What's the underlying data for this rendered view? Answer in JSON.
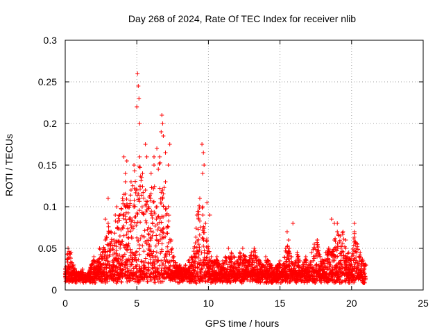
{
  "chart_data": {
    "type": "scatter",
    "title": "Day 268 of 2024, Rate Of TEC Index for receiver nlib",
    "xlabel": "GPS time / hours",
    "ylabel": "ROTI / TECUs",
    "xlim": [
      0,
      25
    ],
    "ylim": [
      0,
      0.3
    ],
    "x_ticks": [
      0,
      5,
      10,
      15,
      20,
      25
    ],
    "x_tick_labels": [
      "0",
      "5",
      "10",
      "15",
      "20",
      "25"
    ],
    "y_ticks": [
      0,
      0.05,
      0.1,
      0.15,
      0.2,
      0.25,
      0.3
    ],
    "y_tick_labels": [
      "0",
      "0.05",
      "0.1",
      "0.15",
      "0.2",
      "0.25",
      "0.3"
    ],
    "grid": true,
    "marker": "+",
    "color": "#ff0000",
    "series": [
      {
        "name": "ROTI",
        "x": [
          0.0,
          0.2,
          0.4,
          0.6,
          0.8,
          1.0,
          1.2,
          1.4,
          1.6,
          1.8,
          2.0,
          2.2,
          2.4,
          2.6,
          2.8,
          3.0,
          3.2,
          3.4,
          3.6,
          3.8,
          4.0,
          4.2,
          4.4,
          4.6,
          4.8,
          5.0,
          5.2,
          5.4,
          5.6,
          5.8,
          6.0,
          6.2,
          6.4,
          6.6,
          6.8,
          7.0,
          7.2,
          7.4,
          7.6,
          7.8,
          8.0,
          8.2,
          8.4,
          8.6,
          8.8,
          9.0,
          9.2,
          9.4,
          9.6,
          9.8,
          10.0,
          10.2,
          10.4,
          10.6,
          10.8,
          11.0,
          11.2,
          11.4,
          11.6,
          11.8,
          12.0,
          12.2,
          12.4,
          12.6,
          12.8,
          13.0,
          13.2,
          13.4,
          13.6,
          13.8,
          14.0,
          14.2,
          14.4,
          14.6,
          14.8,
          15.0,
          15.2,
          15.4,
          15.6,
          15.8,
          16.0,
          16.2,
          16.4,
          16.6,
          16.8,
          17.0,
          17.2,
          17.4,
          17.6,
          17.8,
          18.0,
          18.2,
          18.4,
          18.6,
          18.8,
          19.0,
          19.2,
          19.4,
          19.6,
          19.8,
          20.0,
          20.2,
          20.4,
          20.6,
          20.8,
          21.0,
          5.05,
          5.1,
          5.15,
          5.0,
          5.2,
          6.75,
          6.8,
          6.85,
          6.7,
          9.55,
          9.65,
          9.7,
          9.6,
          4.1,
          4.3,
          4.2,
          5.6,
          5.7,
          6.2,
          6.4,
          6.5,
          4.6,
          3.5,
          3.0,
          2.8,
          7.3,
          7.0,
          7.2,
          9.9,
          10.1,
          15.5,
          15.9,
          18.6,
          18.8,
          19.0,
          20.2,
          19.6
        ],
        "y": [
          0.025,
          0.05,
          0.045,
          0.03,
          0.022,
          0.02,
          0.025,
          0.015,
          0.02,
          0.03,
          0.04,
          0.035,
          0.05,
          0.045,
          0.06,
          0.08,
          0.07,
          0.06,
          0.1,
          0.09,
          0.11,
          0.13,
          0.1,
          0.12,
          0.15,
          0.12,
          0.16,
          0.14,
          0.12,
          0.1,
          0.14,
          0.15,
          0.1,
          0.16,
          0.12,
          0.13,
          0.1,
          0.06,
          0.04,
          0.03,
          0.03,
          0.025,
          0.03,
          0.035,
          0.04,
          0.05,
          0.09,
          0.11,
          0.1,
          0.08,
          0.05,
          0.04,
          0.035,
          0.04,
          0.03,
          0.035,
          0.04,
          0.05,
          0.045,
          0.04,
          0.035,
          0.045,
          0.05,
          0.04,
          0.035,
          0.045,
          0.05,
          0.04,
          0.035,
          0.03,
          0.04,
          0.035,
          0.03,
          0.025,
          0.03,
          0.035,
          0.03,
          0.05,
          0.06,
          0.04,
          0.03,
          0.045,
          0.035,
          0.03,
          0.04,
          0.03,
          0.045,
          0.055,
          0.06,
          0.04,
          0.035,
          0.045,
          0.05,
          0.045,
          0.06,
          0.08,
          0.065,
          0.07,
          0.05,
          0.045,
          0.04,
          0.07,
          0.055,
          0.045,
          0.035,
          0.03,
          0.26,
          0.245,
          0.23,
          0.22,
          0.2,
          0.21,
          0.2,
          0.185,
          0.19,
          0.175,
          0.165,
          0.15,
          0.14,
          0.16,
          0.155,
          0.14,
          0.175,
          0.16,
          0.16,
          0.17,
          0.145,
          0.13,
          0.09,
          0.11,
          0.085,
          0.175,
          0.165,
          0.15,
          0.105,
          0.09,
          0.07,
          0.08,
          0.085,
          0.08,
          0.07,
          0.08,
          0.06
        ]
      }
    ]
  }
}
